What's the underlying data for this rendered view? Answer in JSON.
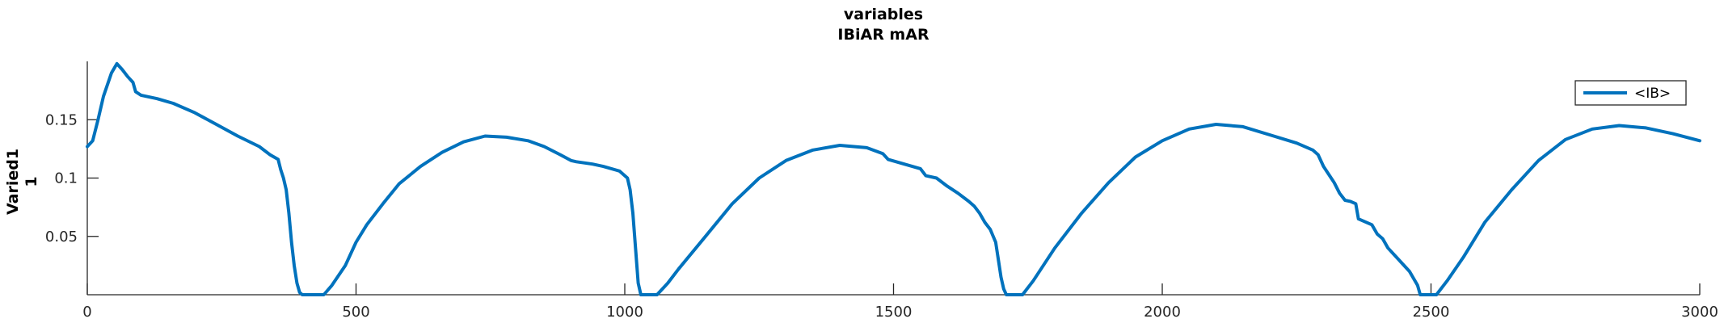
{
  "chart_data": {
    "type": "line",
    "title": "variables",
    "subtitle": "IBiAR mAR",
    "ylabel_lines": [
      "Varied1",
      "1"
    ],
    "xlabel": "",
    "xlim": [
      0,
      3000
    ],
    "ylim": [
      0,
      0.2
    ],
    "xticks": [
      0,
      500,
      1000,
      1500,
      2000,
      2500,
      3000
    ],
    "yticks": [
      0.05,
      0.1,
      0.15
    ],
    "ytick_labels": [
      "0.05",
      "0.1",
      "0.15"
    ],
    "grid": false,
    "legend_position": "top-right",
    "colors": {
      "series": "#0072BD",
      "axis": "#262626"
    },
    "series": [
      {
        "name": "<IB>",
        "x": [
          0,
          10,
          20,
          30,
          45,
          55,
          65,
          75,
          85,
          90,
          100,
          130,
          160,
          200,
          240,
          280,
          320,
          340,
          355,
          360,
          365,
          370,
          375,
          380,
          385,
          390,
          395,
          400,
          410,
          440,
          455,
          480,
          500,
          520,
          550,
          580,
          620,
          660,
          700,
          740,
          780,
          820,
          850,
          880,
          900,
          910,
          940,
          960,
          990,
          1005,
          1010,
          1015,
          1020,
          1025,
          1030,
          1040,
          1060,
          1080,
          1100,
          1150,
          1200,
          1250,
          1300,
          1350,
          1400,
          1450,
          1480,
          1490,
          1520,
          1550,
          1560,
          1580,
          1600,
          1620,
          1640,
          1650,
          1660,
          1670,
          1680,
          1690,
          1695,
          1700,
          1705,
          1710,
          1720,
          1740,
          1760,
          1800,
          1850,
          1900,
          1950,
          2000,
          2050,
          2100,
          2150,
          2200,
          2250,
          2280,
          2290,
          2300,
          2320,
          2330,
          2340,
          2350,
          2360,
          2365,
          2380,
          2390,
          2400,
          2410,
          2420,
          2440,
          2460,
          2475,
          2480,
          2490,
          2510,
          2530,
          2560,
          2600,
          2650,
          2700,
          2750,
          2800,
          2850,
          2900,
          2950,
          3000
        ],
        "values": [
          0.127,
          0.132,
          0.15,
          0.17,
          0.19,
          0.198,
          0.193,
          0.187,
          0.182,
          0.174,
          0.171,
          0.168,
          0.164,
          0.156,
          0.146,
          0.136,
          0.127,
          0.12,
          0.116,
          0.107,
          0.1,
          0.09,
          0.07,
          0.045,
          0.025,
          0.01,
          0.002,
          0.0,
          0.0,
          0.0,
          0.008,
          0.025,
          0.045,
          0.06,
          0.078,
          0.095,
          0.11,
          0.122,
          0.131,
          0.136,
          0.135,
          0.132,
          0.127,
          0.12,
          0.115,
          0.114,
          0.112,
          0.11,
          0.106,
          0.1,
          0.09,
          0.07,
          0.04,
          0.01,
          0.0,
          0.0,
          0.0,
          0.01,
          0.022,
          0.05,
          0.078,
          0.1,
          0.115,
          0.124,
          0.128,
          0.126,
          0.121,
          0.116,
          0.112,
          0.108,
          0.102,
          0.1,
          0.093,
          0.087,
          0.08,
          0.076,
          0.07,
          0.062,
          0.056,
          0.045,
          0.03,
          0.015,
          0.005,
          0.0,
          0.0,
          0.0,
          0.012,
          0.04,
          0.07,
          0.096,
          0.118,
          0.132,
          0.142,
          0.146,
          0.144,
          0.137,
          0.13,
          0.124,
          0.12,
          0.11,
          0.096,
          0.087,
          0.081,
          0.08,
          0.078,
          0.065,
          0.062,
          0.06,
          0.052,
          0.048,
          0.04,
          0.03,
          0.02,
          0.008,
          0.0,
          0.0,
          0.0,
          0.012,
          0.032,
          0.062,
          0.09,
          0.115,
          0.133,
          0.142,
          0.145,
          0.143,
          0.138,
          0.132
        ]
      }
    ]
  }
}
